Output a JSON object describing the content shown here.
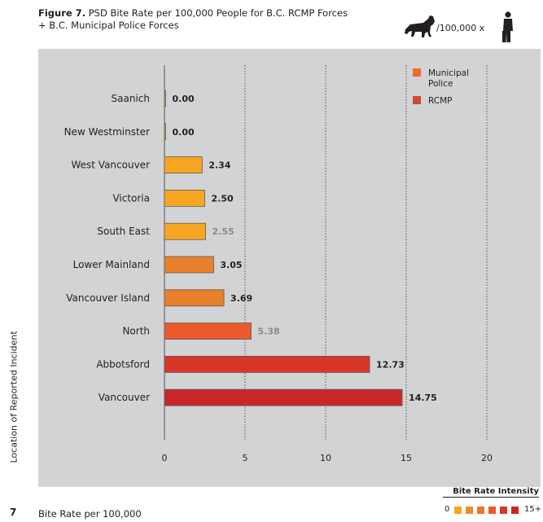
{
  "header": {
    "figure_label": "Figure 7.",
    "title_line1": " PSD Bite Rate per 100,000 People for B.C. RCMP Forces",
    "title_line2": "+ B.C. Municipal Police Forces"
  },
  "unit_graphic": {
    "text": "/100,000 x",
    "dog_icon": "dog-silhouette-icon",
    "person_icon": "person-silhouette-icon"
  },
  "page_number": "7",
  "colors": {
    "panel_bg": "#d2d3d5",
    "intensity": [
      "#f6a623",
      "#f08a2a",
      "#e8762e",
      "#ea5a2d",
      "#d9362a",
      "#c8282a"
    ],
    "municipal_legend": "#ee6a2a",
    "rcmp_legend": "#cf4a33",
    "bar_outline": "#5a5a5a"
  },
  "intensity_legend": {
    "title": "Bite Rate Intensity",
    "min_label": "0",
    "max_label": "15+"
  },
  "chart_data": {
    "type": "bar",
    "orientation": "horizontal",
    "categories": [
      "Saanich",
      "New Westminster",
      "West Vancouver",
      "Victoria",
      "South East",
      "Lower Mainland",
      "Vancouver Island",
      "North",
      "Abbotsford",
      "Vancouver"
    ],
    "values": [
      0.0,
      0.0,
      2.34,
      2.5,
      2.55,
      3.05,
      3.69,
      5.38,
      12.73,
      14.75
    ],
    "value_labels": [
      "0.00",
      "0.00",
      "2.34",
      "2.50",
      "2.55",
      "3.05",
      "3.69",
      "5.38",
      "12.73",
      "14.75"
    ],
    "force_type": [
      "Municipal Police",
      "Municipal Police",
      "Municipal Police",
      "Municipal Police",
      "RCMP",
      "RCMP",
      "RCMP",
      "RCMP",
      "Municipal Police",
      "Municipal Police"
    ],
    "bar_colors": [
      "#f6a623",
      "#f6a623",
      "#f6a623",
      "#f6a623",
      "#f6a623",
      "#e8802c",
      "#e8802c",
      "#ea5a2d",
      "#d9362a",
      "#c8282a"
    ],
    "value_label_colors": [
      "#231f20",
      "#231f20",
      "#231f20",
      "#231f20",
      "#8a8a8a",
      "#231f20",
      "#231f20",
      "#8a8a8a",
      "#231f20",
      "#231f20"
    ],
    "x_ticks": [
      0,
      5,
      10,
      15,
      20
    ],
    "xlim": [
      0,
      20
    ],
    "xlabel": "Bite Rate per 100,000",
    "ylabel": "Location of Reported Incident",
    "legend": {
      "position": "top-right",
      "entries": [
        {
          "label_lines": [
            "Municipal",
            "Police"
          ],
          "color": "#ee6a2a"
        },
        {
          "label_lines": [
            "RCMP"
          ],
          "color": "#cf4a33"
        }
      ]
    },
    "grid": "vertical-dotted"
  }
}
